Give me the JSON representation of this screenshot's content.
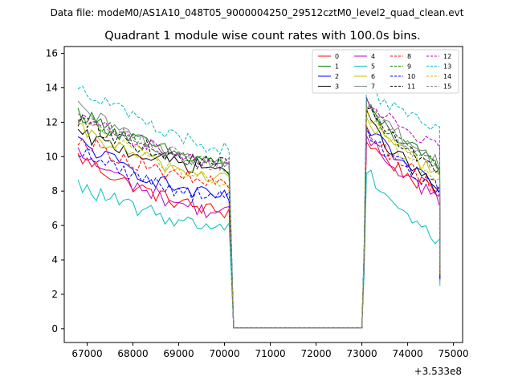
{
  "header": {
    "data_file_label": "Data file: modeM0/AS1A10_048T05_9000004250_29512cztM0_level2_quad_clean.evt"
  },
  "chart_data": {
    "type": "line",
    "title": "Quadrant 1 module wise count rates with 100.0s bins.",
    "xlabel": "",
    "ylabel": "",
    "x_offset_label": "+3.533e8",
    "xlim": [
      66500,
      75200
    ],
    "ylim": [
      -0.8,
      16.4
    ],
    "x_ticks": [
      67000,
      68000,
      69000,
      70000,
      71000,
      72000,
      73000,
      74000,
      75000
    ],
    "x_tick_labels": [
      "67000",
      "68000",
      "69000",
      "70000",
      "71000",
      "72000",
      "73000",
      "74000",
      "75000"
    ],
    "y_ticks": [
      0,
      2,
      4,
      6,
      8,
      10,
      12,
      14,
      16
    ],
    "y_tick_labels": [
      "0",
      "2",
      "4",
      "6",
      "8",
      "10",
      "12",
      "14",
      "16"
    ],
    "grid": false,
    "legend_position": "top-right",
    "gap_interval": [
      70200,
      73000
    ],
    "segments": [
      {
        "start": 66800,
        "end": 70100,
        "step": 100
      },
      {
        "start": 73000,
        "end": 74700,
        "step": 100
      }
    ],
    "series": [
      {
        "name": "0",
        "color": "#ff0000",
        "dash": "solid",
        "start1": 10.0,
        "end1": 6.8,
        "start2": 11.0,
        "end2": 7.7,
        "drop": 2.8
      },
      {
        "name": "1",
        "color": "#008000",
        "dash": "solid",
        "start1": 12.6,
        "end1": 9.6,
        "start2": 13.0,
        "end2": 9.3,
        "drop": 3.3
      },
      {
        "name": "2",
        "color": "#0000ff",
        "dash": "solid",
        "start1": 10.9,
        "end1": 7.6,
        "start2": 11.8,
        "end2": 8.0,
        "drop": 3.0
      },
      {
        "name": "3",
        "color": "#000000",
        "dash": "solid",
        "start1": 11.3,
        "end1": 9.3,
        "start2": 12.3,
        "end2": 8.0,
        "drop": 3.1
      },
      {
        "name": "4",
        "color": "#bf00bf",
        "dash": "solid",
        "start1": 10.2,
        "end1": 6.7,
        "start2": 11.2,
        "end2": 7.5,
        "drop": 2.9
      },
      {
        "name": "5",
        "color": "#00bfbf",
        "dash": "solid",
        "start1": 8.3,
        "end1": 5.9,
        "start2": 9.4,
        "end2": 5.0,
        "drop": 2.5
      },
      {
        "name": "6",
        "color": "#bfbf00",
        "dash": "solid",
        "start1": 11.6,
        "end1": 8.8,
        "start2": 12.2,
        "end2": 9.0,
        "drop": 3.2
      },
      {
        "name": "7",
        "color": "#808080",
        "dash": "solid",
        "start1": 12.8,
        "end1": 9.7,
        "start2": 13.1,
        "end2": 9.6,
        "drop": 3.4
      },
      {
        "name": "8",
        "color": "#ff0000",
        "dash": "dashed",
        "start1": 11.1,
        "end1": 8.4,
        "start2": 11.6,
        "end2": 8.1,
        "drop": 3.0
      },
      {
        "name": "9",
        "color": "#008000",
        "dash": "dashed",
        "start1": 12.5,
        "end1": 9.5,
        "start2": 13.0,
        "end2": 9.3,
        "drop": 3.3
      },
      {
        "name": "10",
        "color": "#0000ff",
        "dash": "dashed",
        "start1": 10.4,
        "end1": 7.6,
        "start2": 11.4,
        "end2": 8.1,
        "drop": 2.9
      },
      {
        "name": "11",
        "color": "#000000",
        "dash": "dashed",
        "start1": 12.1,
        "end1": 9.5,
        "start2": 12.9,
        "end2": 9.1,
        "drop": 3.2
      },
      {
        "name": "12",
        "color": "#bf00bf",
        "dash": "dashed",
        "start1": 12.3,
        "end1": 9.7,
        "start2": 13.1,
        "end2": 10.7,
        "drop": 3.6
      },
      {
        "name": "13",
        "color": "#00bfbf",
        "dash": "dashed",
        "start1": 14.2,
        "end1": 10.5,
        "start2": 14.2,
        "end2": 11.3,
        "drop": 3.7
      },
      {
        "name": "14",
        "color": "#bfbf00",
        "dash": "dashed",
        "start1": 12.2,
        "end1": 8.6,
        "start2": 12.5,
        "end2": 8.6,
        "drop": 3.2
      },
      {
        "name": "15",
        "color": "#808080",
        "dash": "dashed",
        "start1": 12.7,
        "end1": 9.5,
        "start2": 13.0,
        "end2": 9.2,
        "drop": 3.3
      }
    ]
  }
}
